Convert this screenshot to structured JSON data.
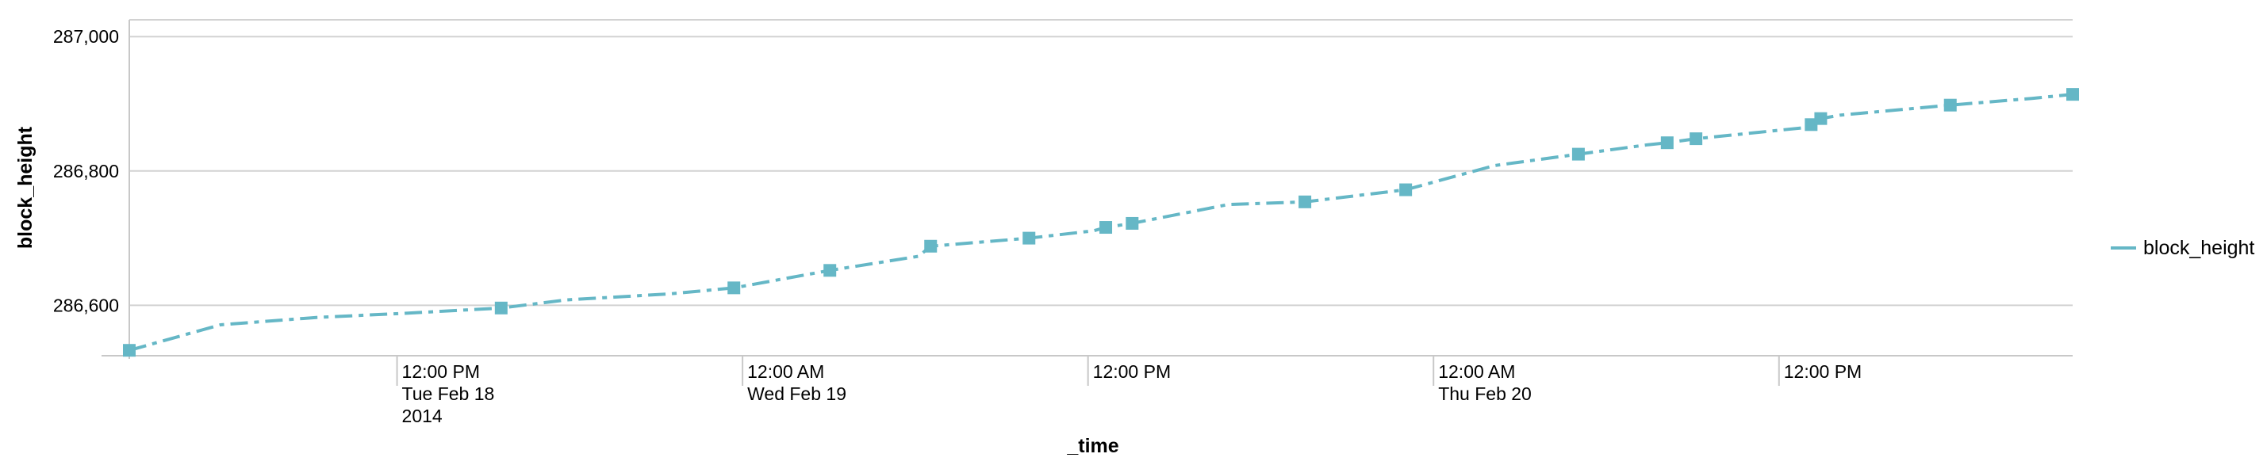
{
  "chart_data": {
    "type": "line",
    "title": "",
    "xlabel": "_time",
    "ylabel": "block_height",
    "xlim": [
      "2014-02-18T02:42",
      "2014-02-20T22:12"
    ],
    "ylim": [
      286525,
      287025
    ],
    "grid": true,
    "legend": "right",
    "y_ticks": [
      {
        "value": 287000,
        "label": "287,000"
      },
      {
        "value": 286800,
        "label": "286,800"
      },
      {
        "value": 286600,
        "label": "286,600"
      }
    ],
    "x_ticks": [
      {
        "time": "2014-02-18T12:00",
        "lines": [
          "12:00 PM",
          "Tue Feb 18",
          "2014"
        ]
      },
      {
        "time": "2014-02-19T00:00",
        "lines": [
          "12:00 AM",
          "Wed Feb 19"
        ]
      },
      {
        "time": "2014-02-19T12:00",
        "lines": [
          "12:00 PM"
        ]
      },
      {
        "time": "2014-02-20T00:00",
        "lines": [
          "12:00 AM",
          "Thu Feb 20"
        ]
      },
      {
        "time": "2014-02-20T12:00",
        "lines": [
          "12:00 PM"
        ]
      }
    ],
    "series": [
      {
        "name": "block_height",
        "color": "#65b7c6",
        "x": [
          "2014-02-18T02:42",
          "2014-02-18T05:52",
          "2014-02-18T09:12",
          "2014-02-18T12:12",
          "2014-02-18T15:37",
          "2014-02-18T17:52",
          "2014-02-18T21:27",
          "2014-02-18T23:42",
          "2014-02-19T03:02",
          "2014-02-19T06:07",
          "2014-02-19T06:32",
          "2014-02-19T09:57",
          "2014-02-19T12:12",
          "2014-02-19T12:37",
          "2014-02-19T13:32",
          "2014-02-19T16:52",
          "2014-02-19T19:32",
          "2014-02-19T23:02",
          "2014-02-20T02:07",
          "2014-02-20T05:02",
          "2014-02-20T07:27",
          "2014-02-20T08:07",
          "2014-02-20T09:07",
          "2014-02-20T12:47",
          "2014-02-20T13:07",
          "2014-02-20T13:27",
          "2014-02-20T14:07",
          "2014-02-20T17:57",
          "2014-02-20T20:47",
          "2014-02-20T22:12"
        ],
        "values": [
          286533,
          286571,
          286582,
          286588,
          286596,
          286608,
          286617,
          286626,
          286652,
          286673,
          286688,
          286700,
          286711,
          286716,
          286722,
          286750,
          286754,
          286772,
          286808,
          286825,
          286839,
          286842,
          286848,
          286864,
          286869,
          286878,
          286883,
          286898,
          286908,
          286914
        ],
        "markers": true,
        "marker_indices": [
          0,
          4,
          7,
          8,
          10,
          11,
          13,
          14,
          16,
          17,
          19,
          21,
          22,
          24,
          25,
          27,
          29
        ]
      }
    ]
  }
}
